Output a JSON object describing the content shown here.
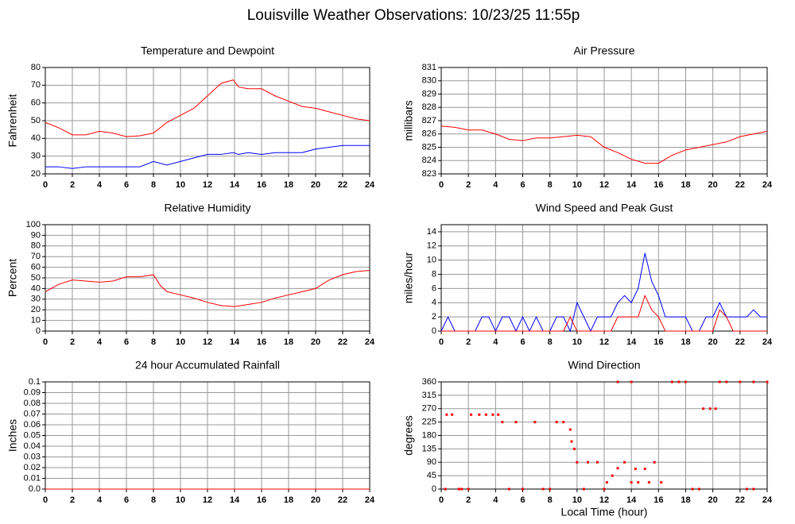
{
  "title": "Louisville Weather Observations: 10/23/25 11:55p",
  "chart_data": [
    {
      "type": "line",
      "title": "Temperature and Dewpoint",
      "ylabel": "Fahrenheit",
      "x": [
        0,
        1,
        2,
        3,
        4,
        5,
        6,
        7,
        8,
        9,
        10,
        11,
        12,
        13,
        13.9,
        14.3,
        15,
        16,
        17,
        18,
        19,
        20,
        21,
        22,
        23,
        24
      ],
      "series": [
        {
          "color": "#ff0000",
          "values": [
            49,
            46,
            42,
            42,
            44,
            43,
            41,
            41.5,
            43,
            49,
            53,
            57,
            64,
            71,
            73,
            69,
            68,
            68,
            64,
            61,
            58,
            57,
            55,
            53,
            51,
            50
          ]
        },
        {
          "color": "#0000ff",
          "values": [
            24,
            24,
            23,
            24,
            24,
            24,
            24,
            24,
            27,
            25,
            27,
            29,
            31,
            31,
            32,
            31,
            32,
            31,
            32,
            32,
            32,
            34,
            35,
            36,
            36,
            36
          ]
        }
      ],
      "xlim": [
        0,
        24
      ],
      "xticks": [
        0,
        2,
        4,
        6,
        8,
        10,
        12,
        14,
        16,
        18,
        20,
        22,
        24
      ],
      "ylim": [
        20,
        80
      ],
      "yticks": [
        20,
        30,
        40,
        50,
        60,
        70,
        80
      ],
      "grid": true
    },
    {
      "type": "line",
      "title": "Air Pressure",
      "ylabel": "millibars",
      "x": [
        0,
        1,
        2,
        3,
        4,
        5,
        6,
        7,
        8,
        9,
        10,
        11,
        12,
        13,
        14,
        15,
        16,
        17,
        18,
        19,
        20,
        21,
        22,
        23,
        24
      ],
      "series": [
        {
          "color": "#ff0000",
          "values": [
            826.6,
            826.5,
            826.3,
            826.3,
            826.0,
            825.6,
            825.5,
            825.7,
            825.7,
            825.8,
            825.9,
            825.8,
            825.0,
            824.6,
            824.1,
            823.8,
            823.8,
            824.4,
            824.8,
            825.0,
            825.2,
            825.4,
            825.8,
            826.0,
            826.2
          ]
        }
      ],
      "xlim": [
        0,
        24
      ],
      "xticks": [
        0,
        2,
        4,
        6,
        8,
        10,
        12,
        14,
        16,
        18,
        20,
        22,
        24
      ],
      "ylim": [
        823,
        831
      ],
      "yticks": [
        823,
        824,
        825,
        826,
        827,
        828,
        829,
        830,
        831
      ],
      "grid": true
    },
    {
      "type": "line",
      "title": "Relative Humidity",
      "ylabel": "Percent",
      "x": [
        0,
        1,
        2,
        3,
        4,
        5,
        6,
        7,
        8,
        8.5,
        9,
        10,
        11,
        12,
        13,
        14,
        15,
        16,
        17,
        18,
        19,
        20,
        21,
        22,
        23,
        24
      ],
      "series": [
        {
          "color": "#ff0000",
          "values": [
            37,
            44,
            48,
            47,
            46,
            47,
            51,
            51,
            53,
            43,
            37,
            34,
            31,
            27,
            24,
            23,
            25,
            27,
            31,
            34,
            37,
            40,
            48,
            53,
            56,
            57
          ]
        }
      ],
      "xlim": [
        0,
        24
      ],
      "xticks": [
        0,
        2,
        4,
        6,
        8,
        10,
        12,
        14,
        16,
        18,
        20,
        22,
        24
      ],
      "ylim": [
        0,
        100
      ],
      "yticks": [
        0,
        10,
        20,
        30,
        40,
        50,
        60,
        70,
        80,
        90,
        100
      ],
      "grid": true
    },
    {
      "type": "line",
      "title": "Wind Speed and Peak Gust",
      "ylabel": "miles/hour",
      "x": [
        0,
        0.5,
        1,
        1.5,
        2,
        2.5,
        3,
        3.5,
        4,
        4.5,
        5,
        5.5,
        6,
        6.5,
        7,
        7.5,
        8,
        8.5,
        9,
        9.5,
        10,
        10.5,
        11,
        11.5,
        12,
        12.5,
        13,
        13.5,
        14,
        14.5,
        15,
        15.5,
        16,
        16.5,
        17,
        17.5,
        18,
        18.5,
        19,
        19.5,
        20,
        20.5,
        21,
        21.5,
        22,
        22.5,
        23,
        23.5,
        24
      ],
      "series": [
        {
          "color": "#0000ff",
          "values": [
            0,
            2,
            0,
            0,
            0,
            0,
            2,
            2,
            0,
            2,
            2,
            0,
            2,
            0,
            2,
            0,
            0,
            2,
            2,
            0,
            4,
            2,
            0,
            2,
            2,
            2,
            4,
            5,
            4,
            6,
            11,
            7,
            5,
            2,
            2,
            2,
            2,
            0,
            0,
            2,
            2,
            4,
            2,
            2,
            2,
            2,
            3,
            2,
            2
          ]
        },
        {
          "color": "#ff0000",
          "values": [
            0,
            0,
            0,
            0,
            0,
            0,
            0,
            0,
            0,
            0,
            0,
            0,
            0,
            0,
            0,
            0,
            0,
            0,
            0,
            2,
            0,
            0,
            0,
            0,
            0,
            0,
            2,
            2,
            2,
            2,
            5,
            3,
            2,
            0,
            0,
            0,
            0,
            0,
            0,
            0,
            0,
            3,
            2,
            0,
            0,
            0,
            0,
            0,
            0
          ]
        }
      ],
      "xlim": [
        0,
        24
      ],
      "xticks": [
        0,
        2,
        4,
        6,
        8,
        10,
        12,
        14,
        16,
        18,
        20,
        22,
        24
      ],
      "ylim": [
        0,
        15
      ],
      "yticks": [
        0,
        2,
        4,
        6,
        8,
        10,
        12,
        14
      ],
      "grid": true
    },
    {
      "type": "line",
      "title": "24 hour Accumulated Rainfall",
      "ylabel": "Inches",
      "x": [
        0,
        24
      ],
      "series": [
        {
          "color": "#ff0000",
          "values": [
            0,
            0
          ]
        }
      ],
      "xlim": [
        0,
        24
      ],
      "xticks": [
        0,
        2,
        4,
        6,
        8,
        10,
        12,
        14,
        16,
        18,
        20,
        22,
        24
      ],
      "ylim": [
        0,
        0.1
      ],
      "yticks": [
        {
          "value": 0,
          "label": "0.0"
        },
        0.01,
        0.02,
        0.03,
        0.04,
        0.05,
        0.06,
        0.07,
        0.08,
        0.09,
        0.1
      ],
      "grid": true
    },
    {
      "type": "scatter",
      "title": "Wind Direction",
      "ylabel": "degrees",
      "xlabel": "Local Time (hour)",
      "x": [
        0.3,
        0.4,
        0.8,
        1.3,
        1.5,
        2,
        2.2,
        2.8,
        3.3,
        3.8,
        4.2,
        4.5,
        5,
        5.5,
        6,
        6.9,
        7.5,
        8,
        8.5,
        9,
        9.5,
        9.6,
        9.8,
        10,
        10.5,
        10.8,
        11.5,
        12,
        12.2,
        12.6,
        13,
        13.5,
        14,
        14.3,
        14.5,
        15,
        15.3,
        15.7,
        16.2,
        13,
        14,
        17,
        17.5,
        18,
        18.5,
        19,
        19.3,
        19.8,
        20.2,
        20.5,
        21,
        22,
        23,
        24,
        22.5,
        23
      ],
      "series": [
        {
          "color": "#ff0000",
          "values": [
            0,
            250,
            250,
            0,
            0,
            0,
            250,
            250,
            250,
            250,
            250,
            225,
            0,
            225,
            0,
            225,
            0,
            0,
            225,
            225,
            200,
            160,
            135,
            90,
            0,
            90,
            90,
            0,
            22.5,
            45,
            70,
            90,
            22.5,
            68,
            22.5,
            68,
            22.5,
            90,
            22.5,
            360,
            360,
            360,
            360,
            360,
            0,
            0,
            270,
            270,
            270,
            360,
            360,
            360,
            360,
            360,
            0,
            0
          ]
        }
      ],
      "xlim": [
        0,
        24
      ],
      "xticks": [
        0,
        2,
        4,
        6,
        8,
        10,
        12,
        14,
        16,
        18,
        20,
        22,
        24
      ],
      "ylim": [
        0,
        360
      ],
      "yticks": [
        0,
        45,
        90,
        135,
        180,
        225,
        270,
        315,
        360
      ],
      "grid": true
    }
  ]
}
